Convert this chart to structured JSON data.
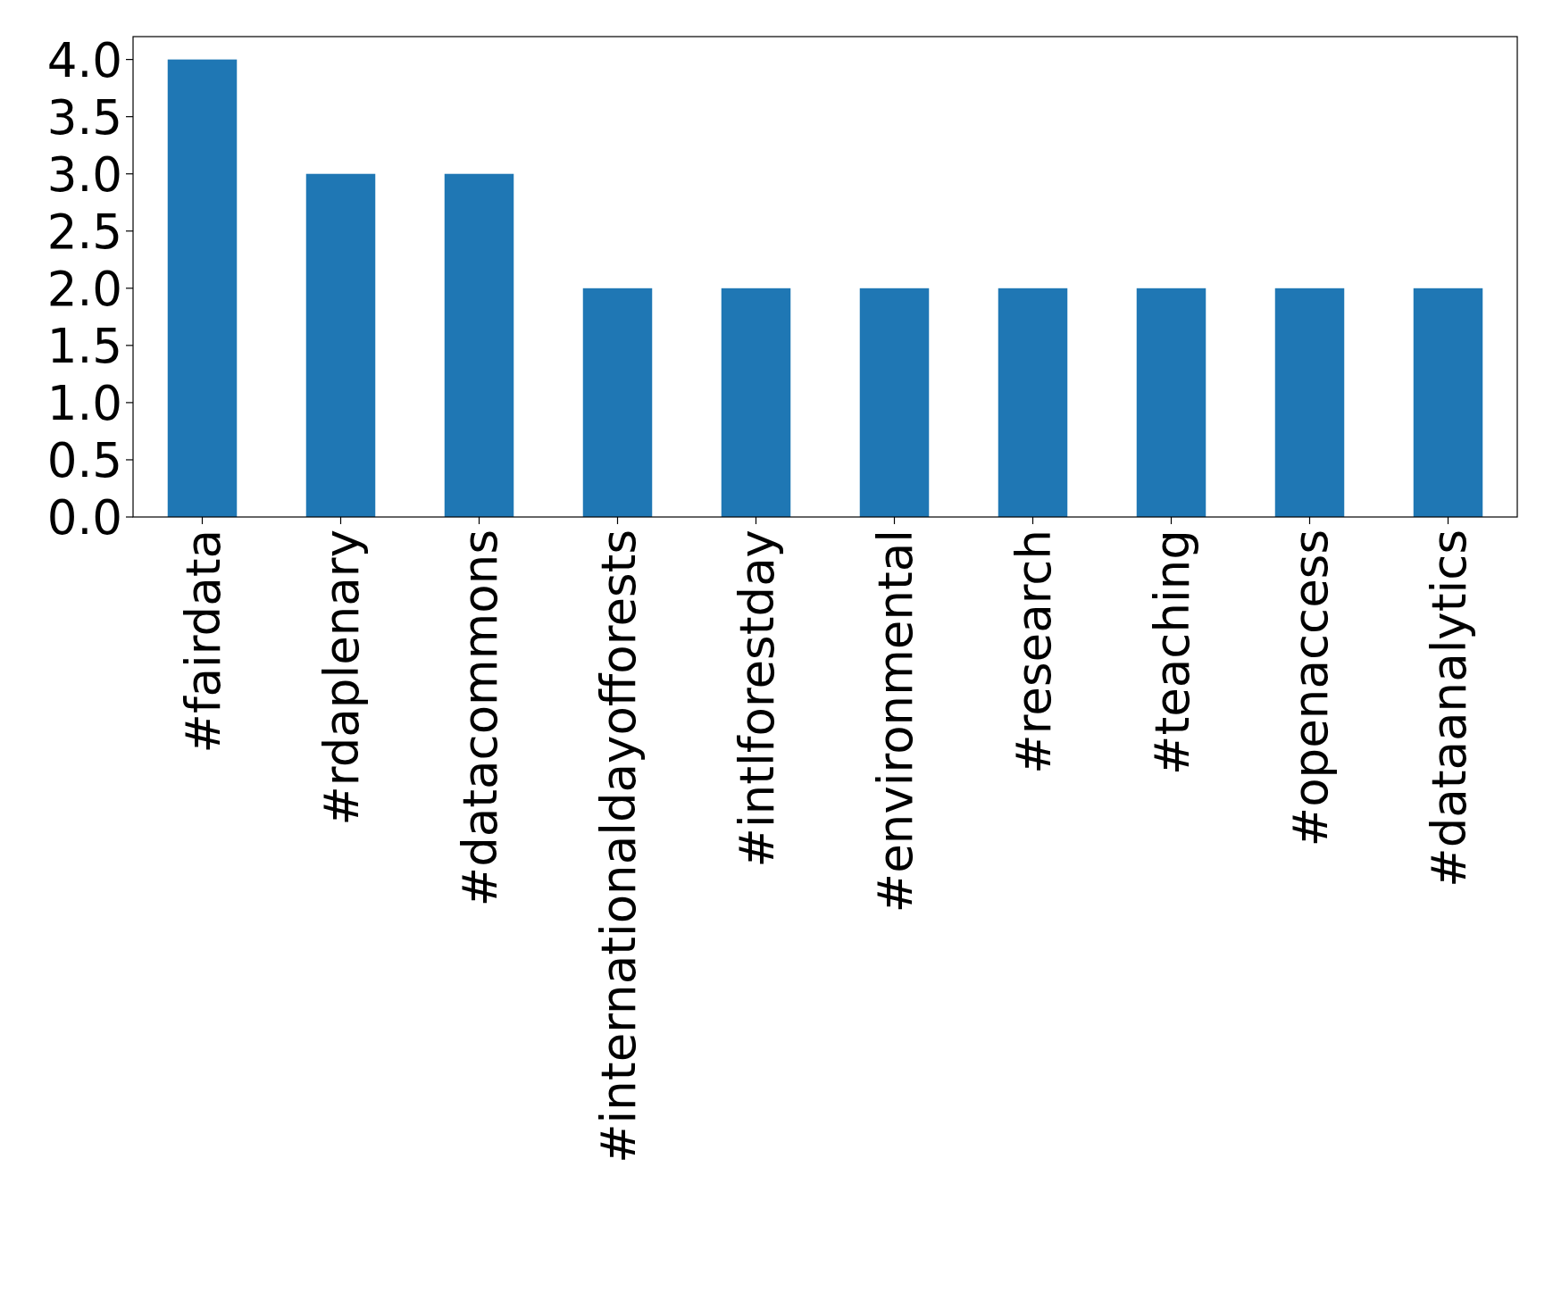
{
  "chart_data": {
    "type": "bar",
    "categories": [
      "#fairdata",
      "#rdaplenary",
      "#datacommons",
      "#internationaldayofforests",
      "#intlforestday",
      "#environmental",
      "#research",
      "#teaching",
      "#openaccess",
      "#dataanalytics"
    ],
    "values": [
      4,
      3,
      3,
      2,
      2,
      2,
      2,
      2,
      2,
      2
    ],
    "color": "#1f77b4",
    "ylim": [
      0,
      4.2
    ],
    "yticks": [
      {
        "value": 0,
        "label": "0.0"
      },
      {
        "value": 0.5,
        "label": "0.5"
      },
      {
        "value": 1,
        "label": "1.0"
      },
      {
        "value": 1.5,
        "label": "1.5"
      },
      {
        "value": 2,
        "label": "2.0"
      },
      {
        "value": 2.5,
        "label": "2.5"
      },
      {
        "value": 3,
        "label": "3.0"
      },
      {
        "value": 3.5,
        "label": "3.5"
      },
      {
        "value": 4,
        "label": "4.0"
      }
    ]
  }
}
